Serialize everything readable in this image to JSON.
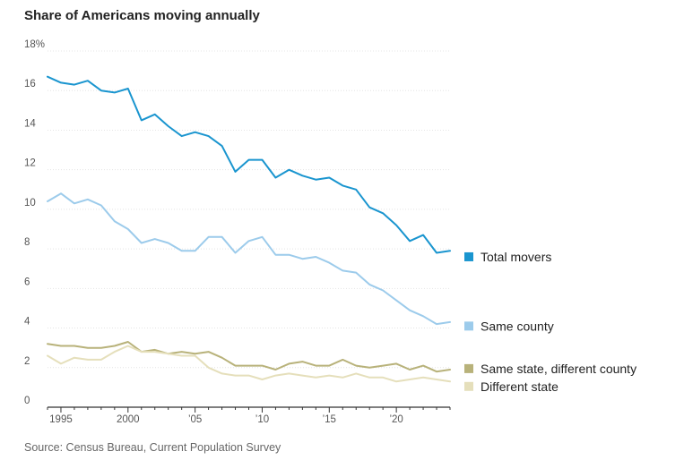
{
  "title": "Share of Americans moving annually",
  "source": "Source: Census Bureau, Current Population Survey",
  "chart_data": {
    "type": "line",
    "title": "Share of Americans moving annually",
    "xlabel": "",
    "ylabel": "",
    "xlim": [
      1994,
      2024
    ],
    "ylim": [
      0,
      18
    ],
    "grid": true,
    "legend_position": "right",
    "y_ticks": [
      {
        "value": 0,
        "label": "0"
      },
      {
        "value": 2,
        "label": "2"
      },
      {
        "value": 4,
        "label": "4"
      },
      {
        "value": 6,
        "label": "6"
      },
      {
        "value": 8,
        "label": "8"
      },
      {
        "value": 10,
        "label": "10"
      },
      {
        "value": 12,
        "label": "12"
      },
      {
        "value": 14,
        "label": "14"
      },
      {
        "value": 16,
        "label": "16"
      },
      {
        "value": 18,
        "label": "18%"
      }
    ],
    "x_ticks": [
      {
        "value": 1995,
        "label": "1995"
      },
      {
        "value": 2000,
        "label": "2000"
      },
      {
        "value": 2005,
        "label": "’05"
      },
      {
        "value": 2010,
        "label": "’10"
      },
      {
        "value": 2015,
        "label": "’15"
      },
      {
        "value": 2020,
        "label": "’20"
      }
    ],
    "x": [
      1994,
      1995,
      1996,
      1997,
      1998,
      1999,
      2000,
      2001,
      2002,
      2003,
      2004,
      2005,
      2006,
      2007,
      2008,
      2009,
      2010,
      2011,
      2012,
      2013,
      2014,
      2015,
      2016,
      2017,
      2018,
      2019,
      2020,
      2021,
      2022,
      2023,
      2024
    ],
    "series": [
      {
        "name": "Total movers",
        "color": "#1a95cf",
        "label_value": 7.6,
        "values": [
          16.7,
          16.4,
          16.3,
          16.5,
          16.0,
          15.9,
          16.1,
          14.5,
          14.8,
          14.2,
          13.7,
          13.9,
          13.7,
          13.2,
          11.9,
          12.5,
          12.5,
          11.6,
          12.0,
          11.7,
          11.5,
          11.6,
          11.2,
          11.0,
          10.1,
          9.8,
          9.2,
          8.4,
          8.7,
          7.8,
          7.9
        ]
      },
      {
        "name": "Same county",
        "color": "#9ccbeb",
        "label_value": 4.1,
        "values": [
          10.4,
          10.8,
          10.3,
          10.5,
          10.2,
          9.4,
          9.0,
          8.3,
          8.5,
          8.3,
          7.9,
          7.9,
          8.6,
          8.6,
          7.8,
          8.4,
          8.6,
          7.7,
          7.7,
          7.5,
          7.6,
          7.3,
          6.9,
          6.8,
          6.2,
          5.9,
          5.4,
          4.9,
          4.6,
          4.2,
          4.3
        ]
      },
      {
        "name": "Same state, different county",
        "color": "#b8b27a",
        "label_value": 1.95,
        "values": [
          3.2,
          3.1,
          3.1,
          3.0,
          3.0,
          3.1,
          3.3,
          2.8,
          2.9,
          2.7,
          2.8,
          2.7,
          2.8,
          2.5,
          2.1,
          2.1,
          2.1,
          1.9,
          2.2,
          2.3,
          2.1,
          2.1,
          2.4,
          2.1,
          2.0,
          2.1,
          2.2,
          1.9,
          2.1,
          1.8,
          1.9
        ]
      },
      {
        "name": "Different state",
        "color": "#e5dfbb",
        "label_value": 1.05,
        "values": [
          2.6,
          2.2,
          2.5,
          2.4,
          2.4,
          2.8,
          3.1,
          2.8,
          2.8,
          2.7,
          2.6,
          2.6,
          2.0,
          1.7,
          1.6,
          1.6,
          1.4,
          1.6,
          1.7,
          1.6,
          1.5,
          1.6,
          1.5,
          1.7,
          1.5,
          1.5,
          1.3,
          1.4,
          1.5,
          1.4,
          1.3
        ]
      }
    ]
  }
}
